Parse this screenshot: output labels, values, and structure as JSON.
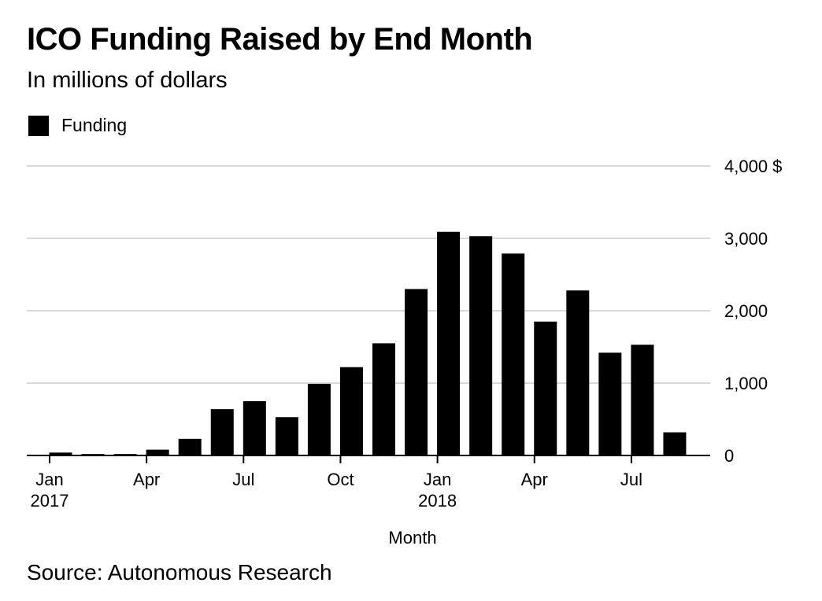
{
  "title": "ICO Funding Raised by End Month",
  "subtitle": "In millions of dollars",
  "source": "Source: Autonomous Research",
  "chart_data": {
    "type": "bar",
    "categories": [
      "Jan 2017",
      "Feb 2017",
      "Mar 2017",
      "Apr 2017",
      "May 2017",
      "Jun 2017",
      "Jul 2017",
      "Aug 2017",
      "Sep 2017",
      "Oct 2017",
      "Nov 2017",
      "Dec 2017",
      "Jan 2018",
      "Feb 2018",
      "Mar 2018",
      "Apr 2018",
      "May 2018",
      "Jun 2018",
      "Jul 2018",
      "Aug 2018"
    ],
    "series": [
      {
        "name": "Funding",
        "values": [
          40,
          20,
          20,
          80,
          230,
          640,
          750,
          530,
          990,
          1220,
          1550,
          2300,
          3090,
          3030,
          2790,
          1850,
          2280,
          1420,
          1530,
          320
        ]
      }
    ],
    "xlabel": "Month",
    "ylabel": "",
    "ylim": [
      0,
      4000
    ],
    "yticks": [
      {
        "value": 0,
        "label": "0"
      },
      {
        "value": 1000,
        "label": "1,000"
      },
      {
        "value": 2000,
        "label": "2,000"
      },
      {
        "value": 3000,
        "label": "3,000"
      },
      {
        "value": 4000,
        "label": "4,000 $"
      }
    ],
    "xticks": [
      {
        "index": 0,
        "label": "Jan",
        "sublabel": "2017"
      },
      {
        "index": 3,
        "label": "Apr",
        "sublabel": ""
      },
      {
        "index": 6,
        "label": "Jul",
        "sublabel": ""
      },
      {
        "index": 9,
        "label": "Oct",
        "sublabel": ""
      },
      {
        "index": 12,
        "label": "Jan",
        "sublabel": "2018"
      },
      {
        "index": 15,
        "label": "Apr",
        "sublabel": ""
      },
      {
        "index": 18,
        "label": "Jul",
        "sublabel": ""
      }
    ],
    "grid": true,
    "legend_position": "top-left",
    "colors": {
      "bar": "#000000",
      "grid": "#d9d9d9",
      "axis": "#000000"
    }
  }
}
